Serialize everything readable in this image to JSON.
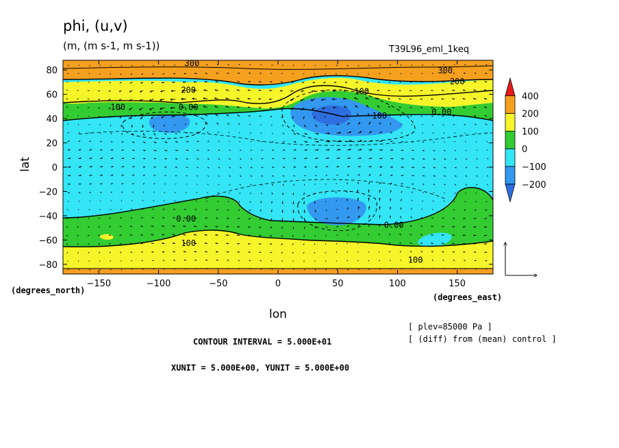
{
  "header": {
    "title": "phi, (u,v)",
    "units": "(m, (m s-1, m s-1))",
    "experiment": "T39L96_eml_1keq"
  },
  "footer": {
    "contour_interval": "CONTOUR INTERVAL = 5.000E+01",
    "vector_units": "XUNIT = 5.000E+00, YUNIT = 5.000E+00",
    "plev": "[ plev=85000 Pa ]",
    "diff_note": "[ (diff) from (mean) control ]"
  },
  "chart_data": {
    "type": "heatmap",
    "xlabel": "lon",
    "ylabel": "lat",
    "x_unit_label": "(degrees_east)",
    "y_unit_label": "(degrees_north)",
    "xlim": [
      -180,
      180
    ],
    "ylim": [
      -88,
      88
    ],
    "x_ticks": [
      -150,
      -100,
      -50,
      0,
      50,
      100,
      150
    ],
    "y_ticks": [
      80,
      60,
      40,
      20,
      0,
      -20,
      -40,
      -60,
      -80
    ],
    "colorbar": {
      "labels": [
        "400",
        "200",
        "100",
        "0",
        "−100",
        "−200"
      ],
      "colors": [
        "#e8191a",
        "#f5a01f",
        "#f5f52a",
        "#33cc33",
        "#33e5f5",
        "#3399f0",
        "#2e6fe0"
      ]
    },
    "contour_labels": [
      {
        "text": "300",
        "lon": -72,
        "lat": 86
      },
      {
        "text": "300",
        "lon": 140,
        "lat": 80
      },
      {
        "text": "200",
        "lon": -75,
        "lat": 64
      },
      {
        "text": "200",
        "lon": 150,
        "lat": 71
      },
      {
        "text": "100",
        "lon": -134,
        "lat": 50
      },
      {
        "text": "100",
        "lon": 70,
        "lat": 63
      },
      {
        "text": "100",
        "lon": 85,
        "lat": 43
      },
      {
        "text": "0.00",
        "lon": -75,
        "lat": 50
      },
      {
        "text": "0.00",
        "lon": 137,
        "lat": 46
      },
      {
        "text": "0.00",
        "lon": -77,
        "lat": -42
      },
      {
        "text": "0.00",
        "lon": 97,
        "lat": -47
      },
      {
        "text": "100",
        "lon": -75,
        "lat": -62
      },
      {
        "text": "100",
        "lon": 115,
        "lat": -76
      }
    ]
  }
}
